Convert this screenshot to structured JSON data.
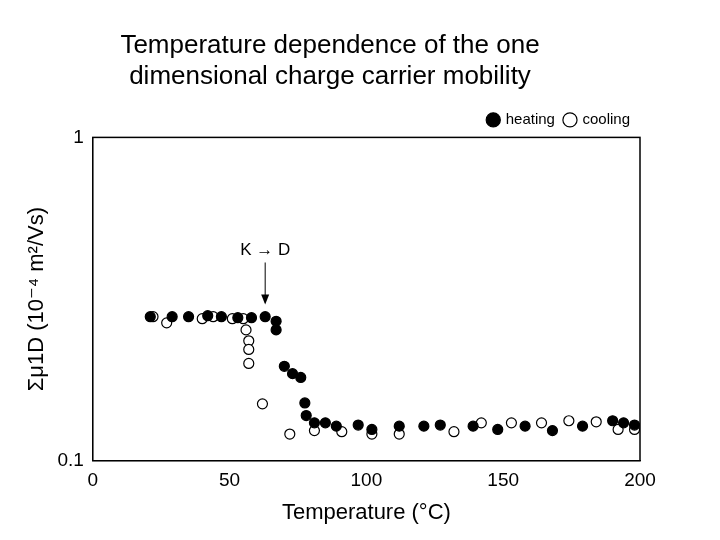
{
  "chart_data": {
    "type": "scatter",
    "title": "Temperature dependence of the one dimensional charge carrier mobility",
    "x_label": "Temperature (°C)",
    "y_label": "Σμ1D (10⁻⁴ m²/Vs)",
    "log": "y",
    "grid": false,
    "legend": "upper right",
    "xlim": [
      0,
      200
    ],
    "xticks": [
      0,
      50,
      100,
      150,
      200
    ],
    "ylim": [
      0.1,
      1
    ],
    "yticks": [
      0.1,
      1
    ],
    "annotations": [
      {
        "text": "K → D",
        "x": 63,
        "y": 0.3
      }
    ],
    "series": [
      {
        "name": "heating",
        "color": "#000000",
        "marker": "filled_circle",
        "x": [
          21,
          29,
          35,
          42,
          47,
          53,
          58,
          63,
          67,
          67,
          70,
          73,
          76,
          77.5,
          78,
          81,
          85,
          89,
          97,
          102,
          112,
          121,
          127,
          139,
          148,
          158,
          168,
          179,
          190,
          194,
          198
        ],
        "values": [
          0.279,
          0.279,
          0.279,
          0.281,
          0.279,
          0.277,
          0.277,
          0.279,
          0.27,
          0.254,
          0.196,
          0.186,
          0.181,
          0.151,
          0.138,
          0.131,
          0.131,
          0.128,
          0.129,
          0.125,
          0.128,
          0.128,
          0.129,
          0.128,
          0.125,
          0.128,
          0.124,
          0.128,
          0.133,
          0.131,
          0.129
        ]
      },
      {
        "name": "cooling",
        "color": "#000000",
        "marker": "open_circle",
        "x": [
          22,
          27,
          40,
          44,
          51,
          55,
          56,
          57,
          57,
          57,
          62,
          72,
          81,
          91,
          102,
          112,
          132,
          142,
          153,
          164,
          174,
          184,
          192,
          198
        ],
        "values": [
          0.279,
          0.267,
          0.275,
          0.279,
          0.275,
          0.275,
          0.254,
          0.235,
          0.221,
          0.2,
          0.15,
          0.121,
          0.124,
          0.123,
          0.121,
          0.121,
          0.123,
          0.131,
          0.131,
          0.131,
          0.133,
          0.132,
          0.125,
          0.125
        ]
      }
    ]
  }
}
